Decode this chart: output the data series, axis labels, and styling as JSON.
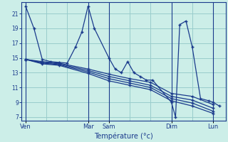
{
  "bg_color": "#cceee8",
  "plot_bg_color": "#cceee8",
  "line_color": "#1a3a8c",
  "grid_color": "#99cccc",
  "xlabel": "Température (°c)",
  "xlabel_color": "#1a3a8c",
  "ylim": [
    6.5,
    22.5
  ],
  "yticks": [
    7,
    9,
    11,
    13,
    15,
    17,
    19,
    21
  ],
  "xtick_pos": [
    0,
    30,
    40,
    70,
    90
  ],
  "xtick_labs": [
    "Ven",
    "Mar",
    "Sam",
    "Dim",
    "Lun"
  ],
  "vlines_x": [
    0,
    30,
    40,
    70,
    90
  ],
  "xlim": [
    -2,
    96
  ],
  "main_x": [
    0,
    4,
    8,
    12,
    16,
    20,
    24,
    27,
    30,
    33,
    40,
    43,
    46,
    49,
    52,
    55,
    58,
    61,
    70,
    72,
    74,
    77,
    80,
    84,
    88,
    90,
    93
  ],
  "main_y": [
    22,
    19,
    14.8,
    14.5,
    14.4,
    14.3,
    16.5,
    18.5,
    22,
    19,
    15,
    13.5,
    13.0,
    14.5,
    13.0,
    12.5,
    12.0,
    12.0,
    9,
    7,
    19.5,
    20.0,
    16.5,
    9.5,
    9.2,
    9.0,
    8.5
  ],
  "fan_x": [
    0,
    8,
    16,
    30,
    40,
    50,
    60,
    70,
    80,
    90
  ],
  "fan_y": [
    [
      14.8,
      14.5,
      14.3,
      13.5,
      12.8,
      12.2,
      11.7,
      10.2,
      9.8,
      8.7
    ],
    [
      14.8,
      14.4,
      14.2,
      13.3,
      12.5,
      11.9,
      11.3,
      9.8,
      9.3,
      8.2
    ],
    [
      14.8,
      14.3,
      14.1,
      13.1,
      12.2,
      11.6,
      11.0,
      9.5,
      8.9,
      7.8
    ],
    [
      14.8,
      14.2,
      14.0,
      12.9,
      11.9,
      11.3,
      10.7,
      9.2,
      8.5,
      7.5
    ]
  ]
}
